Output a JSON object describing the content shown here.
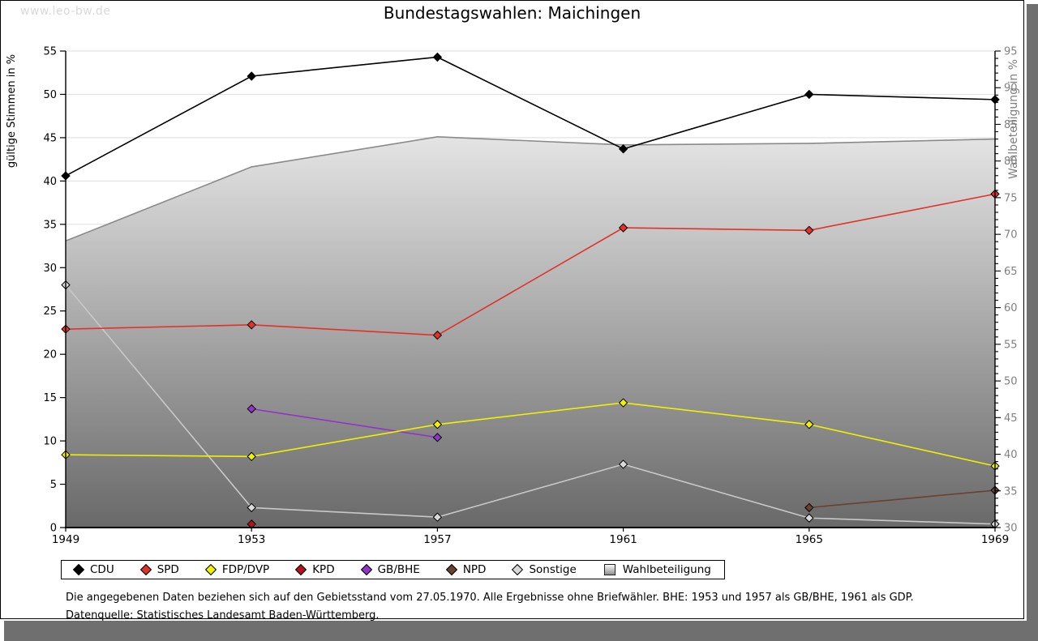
{
  "watermark": "www.leo-bw.de",
  "title": "Bundestagswahlen: Maichingen",
  "chart_data": {
    "type": "line",
    "categories": [
      "1949",
      "1953",
      "1957",
      "1961",
      "1965",
      "1969"
    ],
    "left_axis": {
      "label": "gültige Stimmen in %",
      "min": 0,
      "max": 55,
      "tick_step": 5
    },
    "right_axis": {
      "label": "Wahlbeteiligung in %",
      "min": 30,
      "max": 95,
      "tick_step": 5,
      "minor_step": 1
    },
    "grid": "horizontal, light gray, behind area",
    "legend_position": "bottom",
    "series": [
      {
        "name": "CDU",
        "type": "line",
        "axis": "left",
        "color": "#000000",
        "values": [
          40.6,
          52.1,
          54.3,
          43.7,
          50.0,
          49.4
        ]
      },
      {
        "name": "SPD",
        "type": "line",
        "axis": "left",
        "color": "#e23228",
        "values": [
          22.9,
          23.4,
          22.2,
          34.6,
          34.3,
          38.5
        ]
      },
      {
        "name": "FDP/DVP",
        "type": "line",
        "axis": "left",
        "color": "#f0f000",
        "values": [
          8.4,
          8.2,
          11.9,
          14.4,
          11.9,
          7.1
        ]
      },
      {
        "name": "KPD",
        "type": "line",
        "axis": "left",
        "color": "#b5121b",
        "values": [
          null,
          0.4,
          null,
          null,
          null,
          null
        ]
      },
      {
        "name": "GB/BHE",
        "type": "line",
        "axis": "left",
        "color": "#9333cc",
        "values": [
          null,
          13.7,
          10.4,
          null,
          null,
          null
        ]
      },
      {
        "name": "NPD",
        "type": "line",
        "axis": "left",
        "color": "#6b4130",
        "values": [
          null,
          null,
          null,
          null,
          2.3,
          4.3
        ]
      },
      {
        "name": "Sonstige",
        "type": "line",
        "axis": "left",
        "color": "#c8c8c8",
        "values": [
          28.0,
          2.3,
          1.2,
          7.3,
          1.1,
          0.4
        ]
      },
      {
        "name": "Wahlbeteiligung",
        "type": "area",
        "axis": "right",
        "color": "#8a8a8a",
        "values": [
          69.1,
          79.2,
          83.3,
          82.2,
          82.4,
          83.0
        ]
      }
    ]
  },
  "footnotes": [
    "Die angegebenen Daten beziehen sich auf den Gebietsstand vom 27.05.1970. Alle Ergebnisse ohne Briefwähler. BHE: 1953 und 1957 als GB/BHE, 1961 als GDP.",
    "Datenquelle: Statistisches Landesamt Baden-Württemberg."
  ],
  "colors": {
    "card_border": "#000000",
    "shadow": "#6f6f6f",
    "watermark": "#d9d9d9",
    "gridline": "#e3e3e3",
    "right_axis_text": "#808080",
    "area_gradient_top": "#ffffff",
    "area_gradient_bottom": "#696969",
    "marker_outline": "#000000",
    "sonstige_marker_fill": "#d9d9d9"
  }
}
